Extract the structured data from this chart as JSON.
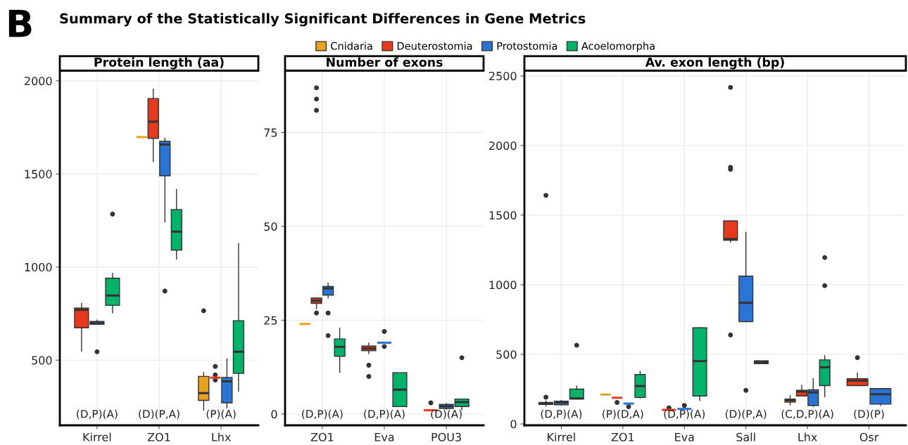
{
  "chart_data": [
    {
      "type": "box",
      "title": "Protein length (aa)",
      "categories": [
        "Kirrel",
        "ZO1",
        "Lhx"
      ],
      "ylim": [
        150,
        2045
      ],
      "yticks": [
        500,
        1000,
        1500,
        2000
      ],
      "grid": true,
      "legend": "top",
      "annotations": [
        "B",
        "Summary of the Statistically Significant Differences in Gene Metrics",
        "(D,P)(A)",
        "(D)(P,A)",
        "(P)(A)"
      ],
      "series": [
        {
          "name": "Cnidaria",
          "color": "#e8a21b",
          "boxes": [
            null,
            {
              "low": 1698,
              "q1": 1698,
              "median": 1698,
              "q3": 1698,
              "high": 1698
            },
            {
              "low": 231,
              "q1": 284,
              "median": 323,
              "q3": 413,
              "high": 434,
              "outliers": [
                765
              ]
            }
          ]
        },
        {
          "name": "Deuterostomia",
          "color": "#e8391c",
          "boxes": [
            {
              "low": 548,
              "q1": 674,
              "median": 770,
              "q3": 780,
              "high": 804
            },
            {
              "low": 1565,
              "q1": 1691,
              "median": 1781,
              "q3": 1905,
              "high": 1956
            },
            {
              "low": 406,
              "q1": 406,
              "median": 406,
              "q3": 406,
              "high": 406,
              "outliers": [
                466,
                421,
                393
              ]
            }
          ]
        },
        {
          "name": "Protostomia",
          "color": "#2a74d4",
          "boxes": [
            {
              "low": 692,
              "q1": 692,
              "median": 698,
              "q3": 708,
              "high": 715,
              "outliers": [
                545
              ]
            },
            {
              "low": 1242,
              "q1": 1490,
              "median": 1658,
              "q3": 1675,
              "high": 1691,
              "outliers": [
                871
              ]
            },
            {
              "low": 244,
              "q1": 271,
              "median": 386,
              "q3": 407,
              "high": 507
            }
          ]
        },
        {
          "name": "Acoelomorpha",
          "color": "#00b36b",
          "boxes": [
            {
              "low": 754,
              "q1": 794,
              "median": 847,
              "q3": 940,
              "high": 966,
              "outliers": [
                1284
              ]
            },
            {
              "low": 1043,
              "q1": 1091,
              "median": 1190,
              "q3": 1308,
              "high": 1417
            },
            {
              "low": 333,
              "q1": 429,
              "median": 545,
              "q3": 712,
              "high": 1126
            }
          ]
        }
      ]
    },
    {
      "type": "box",
      "title": "Number of exons",
      "categories": [
        "ZO1",
        "Eva",
        "POU3"
      ],
      "ylim": [
        -3,
        91
      ],
      "yticks": [
        0,
        25,
        50,
        75
      ],
      "grid": true,
      "annotations": [
        "(D,P)(A)",
        "(D,P)(A)",
        "(D)(A)"
      ],
      "series": [
        {
          "name": "Cnidaria",
          "color": "#e8a21b",
          "boxes": [
            {
              "low": 24,
              "q1": 24,
              "median": 24,
              "q3": 24,
              "high": 24
            },
            null,
            null
          ]
        },
        {
          "name": "Deuterostomia",
          "color": "#e8391c",
          "boxes": [
            {
              "low": 28.1,
              "q1": 29.5,
              "median": 30.2,
              "q3": 30.9,
              "high": 30.9,
              "outliers": [
                26.9,
                80.9,
                83.9,
                86.9
              ]
            },
            {
              "low": 16.1,
              "q1": 16.9,
              "median": 17.5,
              "q3": 18.1,
              "high": 18.9,
              "outliers": [
                13,
                10
              ]
            },
            {
              "low": 1,
              "q1": 1,
              "median": 1,
              "q3": 1,
              "high": 1,
              "outliers": [
                3
              ]
            }
          ]
        },
        {
          "name": "Protostomia",
          "color": "#2a74d4",
          "boxes": [
            {
              "low": 30.9,
              "q1": 31.7,
              "median": 33.5,
              "q3": 34,
              "high": 34.9,
              "outliers": [
                26.9,
                20.9
              ]
            },
            {
              "low": 19,
              "q1": 19,
              "median": 19,
              "q3": 19,
              "high": 19,
              "outliers": [
                22,
                18
              ]
            },
            {
              "low": 1.25,
              "q1": 1.5,
              "median": 2.1,
              "q3": 2.6,
              "high": 2.8
            }
          ]
        },
        {
          "name": "Acoelomorpha",
          "color": "#00b36b",
          "boxes": [
            {
              "low": 11.1,
              "q1": 15.4,
              "median": 17.9,
              "q3": 20,
              "high": 22.9
            },
            {
              "low": 2,
              "q1": 2,
              "median": 6.5,
              "q3": 11,
              "high": 11
            },
            {
              "low": 1.05,
              "q1": 2,
              "median": 3.2,
              "q3": 4,
              "high": 4,
              "outliers": [
                15
              ]
            }
          ]
        }
      ]
    },
    {
      "type": "box",
      "title": "Av. exon length (bp)",
      "categories": [
        "Kirrel",
        "ZO1",
        "Eva",
        "Sall",
        "Lhx",
        "Osr"
      ],
      "ylim": [
        -10,
        2525
      ],
      "yticks": [
        0,
        500,
        1000,
        1500,
        2000,
        2500
      ],
      "grid": true,
      "annotations": [
        "(D,P)(A)",
        "(P)(D,A)",
        "(D,P)(A)",
        "(D)(P,A)",
        "(C,D,P)(A)",
        "(D)(P)"
      ],
      "series": [
        {
          "name": "Cnidaria",
          "color": "#e8a21b",
          "boxes": [
            null,
            {
              "low": 211,
              "q1": 211,
              "median": 211,
              "q3": 211,
              "high": 211
            },
            null,
            null,
            {
              "low": 138,
              "q1": 156,
              "median": 169,
              "q3": 179,
              "high": 204
            },
            null
          ]
        },
        {
          "name": "Deuterostomia",
          "color": "#e8391c",
          "boxes": [
            {
              "low": 130,
              "q1": 140,
              "median": 147,
              "q3": 154,
              "high": 165,
              "outliers": [
                192,
                1642
              ]
            },
            {
              "low": 188,
              "q1": 188,
              "median": 188,
              "q3": 188,
              "high": 188,
              "outliers": [
                154
              ]
            },
            {
              "low": 101,
              "q1": 101,
              "median": 101,
              "q3": 101,
              "high": 101,
              "outliers": [
                115
              ]
            },
            {
              "low": 1305,
              "q1": 1319,
              "median": 1328,
              "q3": 1458,
              "high": 1458,
              "outliers": [
                2417,
                1843,
                1829,
                639
              ]
            },
            {
              "low": 201,
              "q1": 201,
              "median": 233,
              "q3": 241,
              "high": 277
            },
            {
              "low": 275,
              "q1": 275,
              "median": 311,
              "q3": 325,
              "high": 366,
              "outliers": [
                476
              ]
            }
          ]
        },
        {
          "name": "Protostomia",
          "color": "#2a74d4",
          "boxes": [
            {
              "low": 138,
              "q1": 138,
              "median": 154,
              "q3": 163,
              "high": 169
            },
            {
              "low": 146,
              "q1": 146,
              "median": 146,
              "q3": 146,
              "high": 146,
              "outliers": [
                124
              ]
            },
            {
              "low": 108,
              "q1": 108,
              "median": 108,
              "q3": 108,
              "high": 108,
              "outliers": [
                133
              ]
            },
            {
              "low": 735,
              "q1": 735,
              "median": 870,
              "q3": 1062,
              "high": 1376,
              "outliers": [
                241
              ]
            },
            {
              "low": 126,
              "q1": 133,
              "median": 227,
              "q3": 245,
              "high": 325
            },
            {
              "low": 133,
              "q1": 142,
              "median": 213,
              "q3": 254,
              "high": 254
            }
          ]
        },
        {
          "name": "Acoelomorpha",
          "color": "#00b36b",
          "boxes": [
            {
              "low": 179,
              "q1": 179,
              "median": 183,
              "q3": 250,
              "high": 272,
              "outliers": [
                565
              ]
            },
            {
              "low": 186,
              "q1": 190,
              "median": 272,
              "q3": 355,
              "high": 378
            },
            {
              "low": 169,
              "q1": 201,
              "median": 451,
              "q3": 691,
              "high": 691
            },
            {
              "low": 433,
              "q1": 433,
              "median": 442,
              "q3": 453,
              "high": 453
            },
            {
              "low": 195,
              "q1": 275,
              "median": 407,
              "q3": 460,
              "high": 490,
              "outliers": [
                1195,
                993
              ]
            },
            null
          ]
        }
      ]
    }
  ]
}
